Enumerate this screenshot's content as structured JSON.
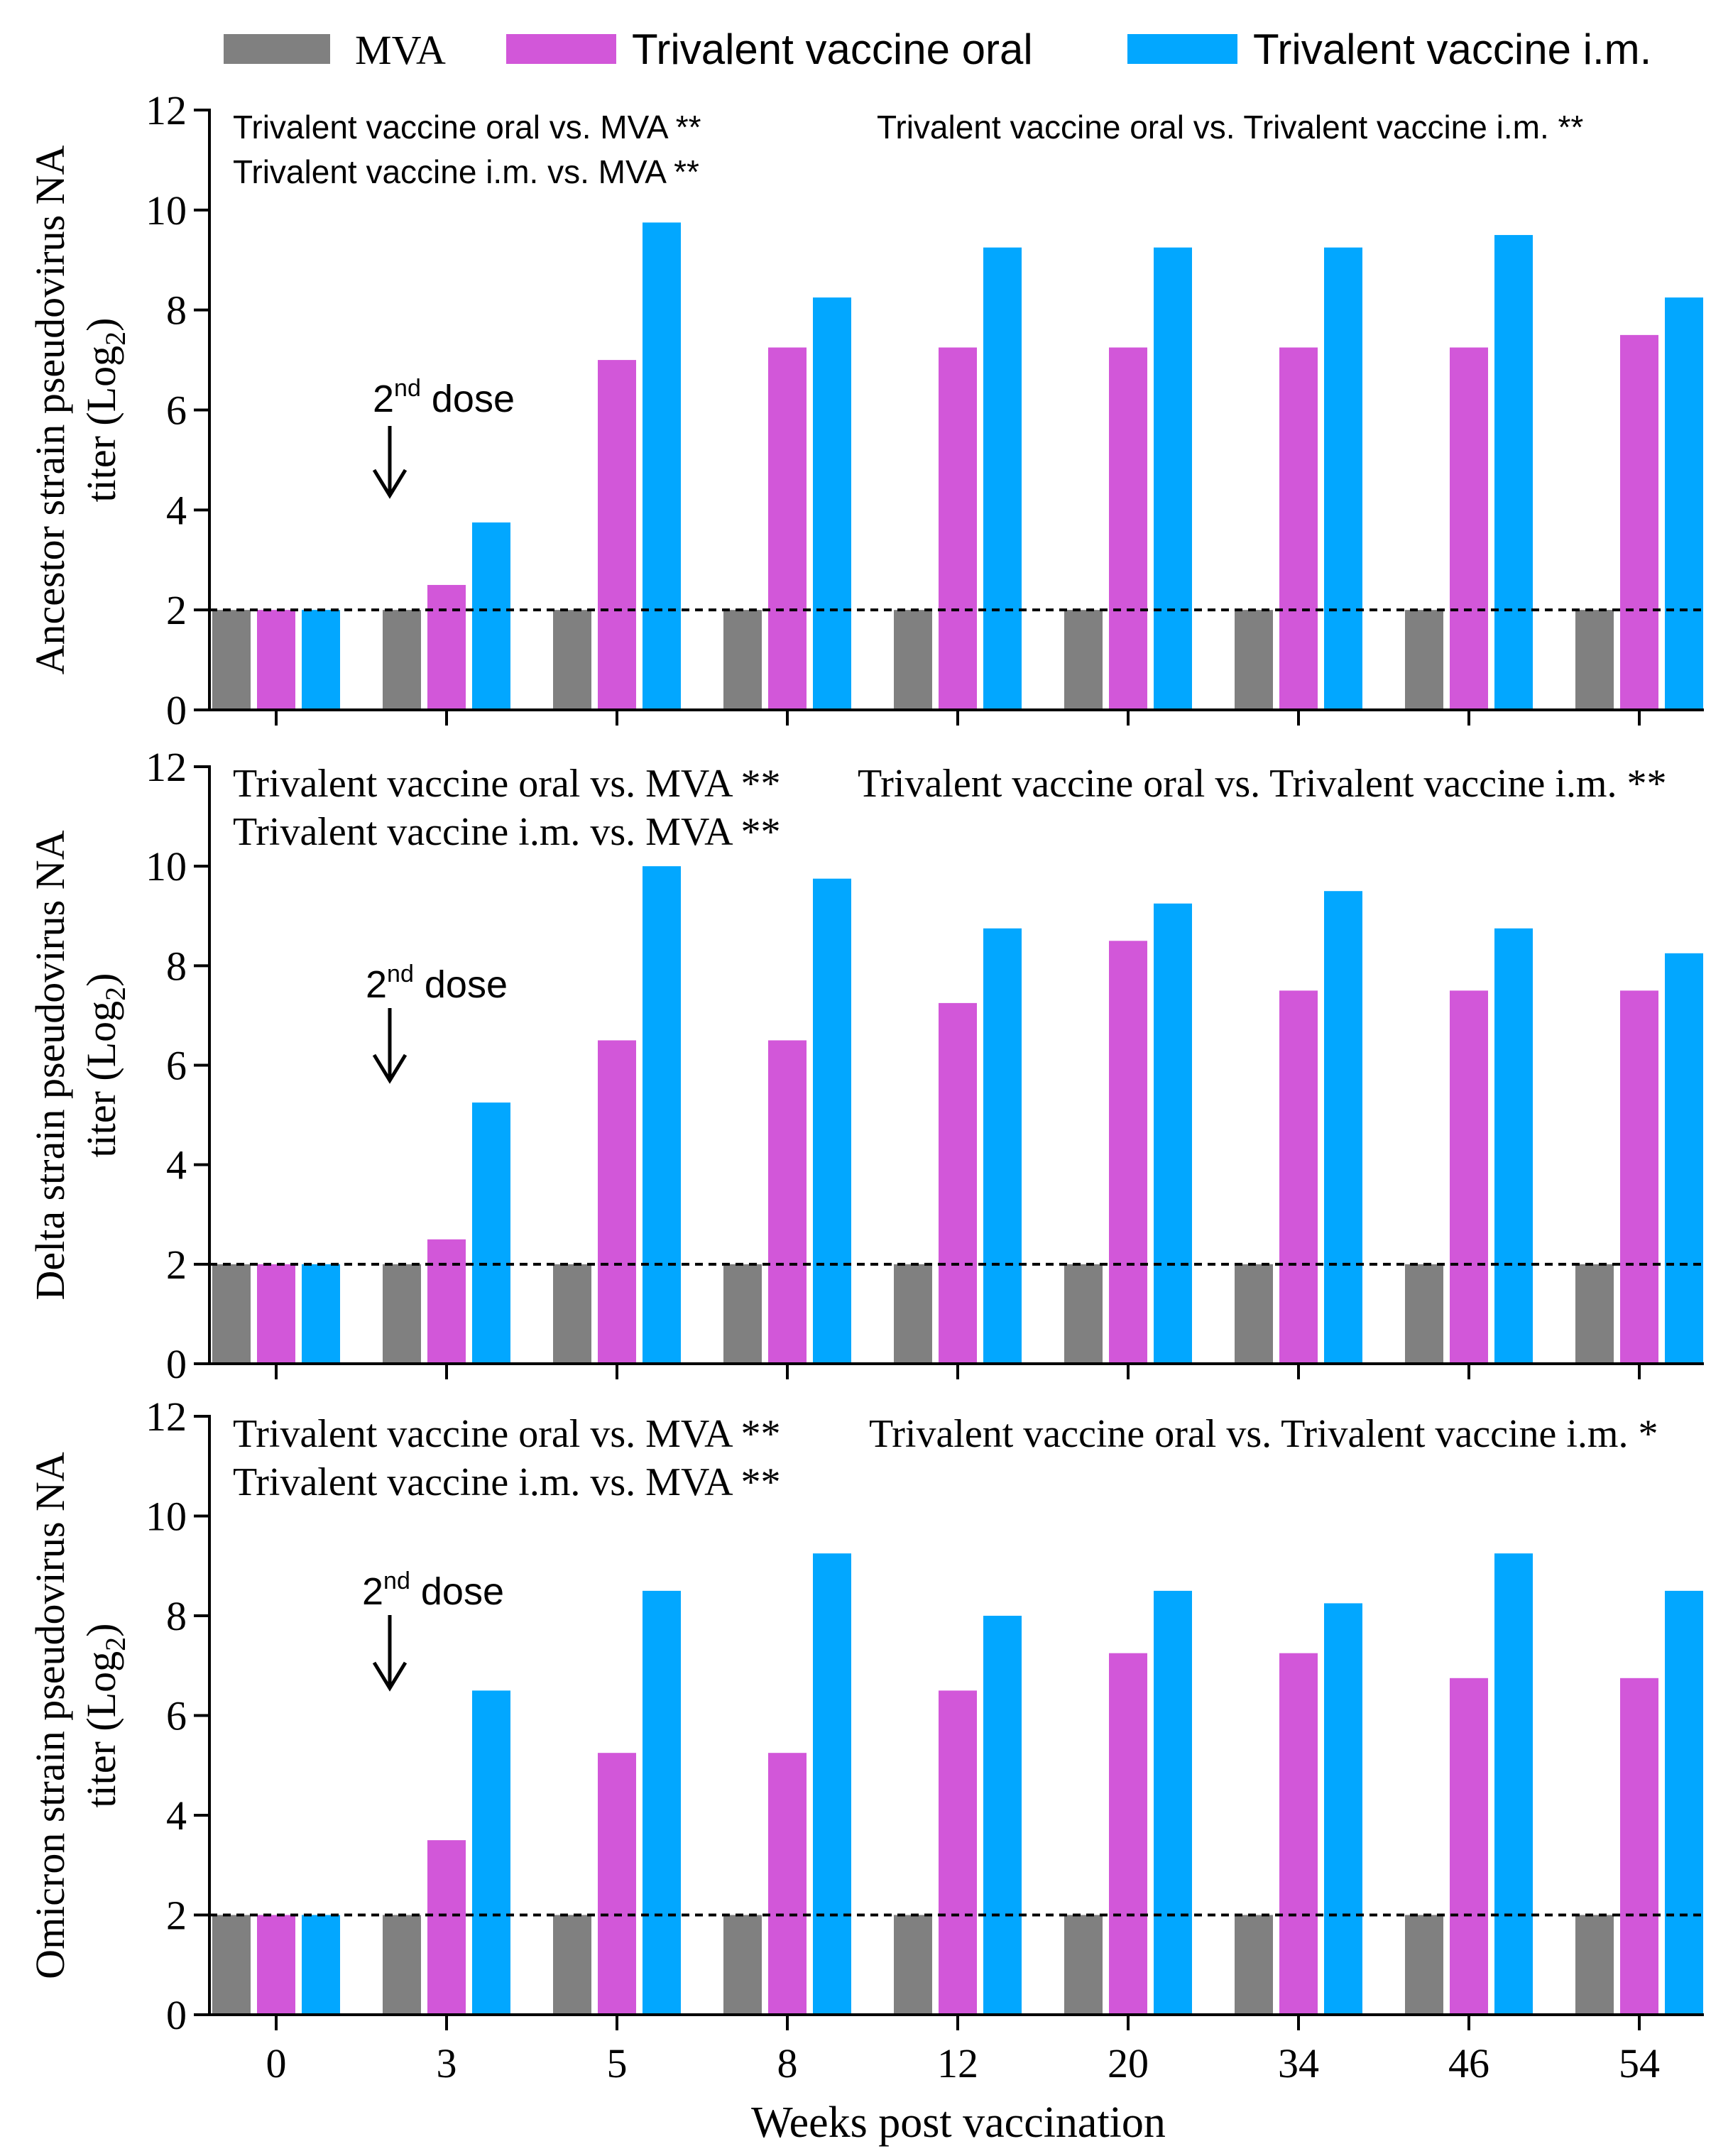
{
  "legend": [
    {
      "name": "MVA",
      "color": "#808080"
    },
    {
      "name": "Trivalent vaccine oral",
      "color": "#D257D9"
    },
    {
      "name": "Trivalent vaccine i.m.",
      "color": "#02A7FF"
    }
  ],
  "xlabel": "Weeks post vaccination",
  "chart_data": [
    {
      "type": "bar",
      "panel": "ancestor",
      "ylabel_line1": "Ancestor strain pseudovirus NA",
      "ylabel_line2": "titer (Log",
      "ylabel_sub": "2",
      "ylabel_close": ")",
      "categories": [
        "0",
        "3",
        "5",
        "8",
        "12",
        "20",
        "34",
        "46",
        "54"
      ],
      "ylim": [
        0,
        12
      ],
      "yticks": [
        0,
        2,
        4,
        6,
        8,
        10,
        12
      ],
      "reference_line": 2,
      "series": [
        {
          "name": "MVA",
          "values": [
            2,
            2,
            2,
            2,
            2,
            2,
            2,
            2,
            2
          ]
        },
        {
          "name": "Trivalent vaccine oral",
          "values": [
            2,
            2.5,
            7,
            7.25,
            7.25,
            7.25,
            7.25,
            7.25,
            7.5
          ]
        },
        {
          "name": "Trivalent vaccine i.m.",
          "values": [
            2,
            3.75,
            9.75,
            8.25,
            9.25,
            9.25,
            9.25,
            9.5,
            8.25
          ]
        }
      ],
      "annotations": [
        "Trivalent vaccine oral vs. MVA **",
        "Trivalent vaccine i.m. vs. MVA **",
        "Trivalent vaccine oral vs. Trivalent vaccine i.m. **"
      ],
      "dose_label": "2",
      "dose_label_sup": "nd",
      "dose_label_rest": " dose",
      "dose_category": "3"
    },
    {
      "type": "bar",
      "panel": "delta",
      "ylabel_line1": "Delta strain pseudovirus NA",
      "ylabel_line2": "titer (Log",
      "ylabel_sub": "2",
      "ylabel_close": ")",
      "categories": [
        "0",
        "3",
        "5",
        "8",
        "12",
        "20",
        "34",
        "46",
        "54"
      ],
      "ylim": [
        0,
        12
      ],
      "yticks": [
        0,
        2,
        4,
        6,
        8,
        10,
        12
      ],
      "reference_line": 2,
      "series": [
        {
          "name": "MVA",
          "values": [
            2,
            2,
            2,
            2,
            2,
            2,
            2,
            2,
            2
          ]
        },
        {
          "name": "Trivalent vaccine oral",
          "values": [
            2,
            2.5,
            6.5,
            6.5,
            7.25,
            8.5,
            7.5,
            7.5,
            7.5
          ]
        },
        {
          "name": "Trivalent vaccine i.m.",
          "values": [
            2,
            5.25,
            10,
            9.75,
            8.75,
            9.25,
            9.5,
            8.75,
            8.25
          ]
        }
      ],
      "annotations": [
        "Trivalent vaccine oral vs. MVA **",
        "Trivalent vaccine i.m. vs. MVA **",
        "Trivalent vaccine oral vs. Trivalent vaccine i.m. **"
      ],
      "dose_label": "2",
      "dose_label_sup": "nd",
      "dose_label_rest": " dose",
      "dose_category": "3"
    },
    {
      "type": "bar",
      "panel": "omicron",
      "ylabel_line1": "Omicron strain pseudovirus NA",
      "ylabel_line2": "titer (Log",
      "ylabel_sub": "2",
      "ylabel_close": ")",
      "categories": [
        "0",
        "3",
        "5",
        "8",
        "12",
        "20",
        "34",
        "46",
        "54"
      ],
      "ylim": [
        0,
        12
      ],
      "yticks": [
        0,
        2,
        4,
        6,
        8,
        10,
        12
      ],
      "reference_line": 2,
      "series": [
        {
          "name": "MVA",
          "values": [
            2,
            2,
            2,
            2,
            2,
            2,
            2,
            2,
            2
          ]
        },
        {
          "name": "Trivalent vaccine oral",
          "values": [
            2,
            3.5,
            5.25,
            5.25,
            6.5,
            7.25,
            7.25,
            6.75,
            6.75
          ]
        },
        {
          "name": "Trivalent vaccine i.m.",
          "values": [
            2,
            6.5,
            8.5,
            9.25,
            8,
            8.5,
            8.25,
            9.25,
            8.5
          ]
        }
      ],
      "annotations": [
        "Trivalent vaccine oral vs. MVA **",
        "Trivalent vaccine i.m. vs. MVA **",
        "Trivalent vaccine oral vs. Trivalent vaccine i.m. *"
      ],
      "dose_label": "2",
      "dose_label_sup": "nd",
      "dose_label_rest": " dose",
      "dose_category": "3"
    }
  ]
}
